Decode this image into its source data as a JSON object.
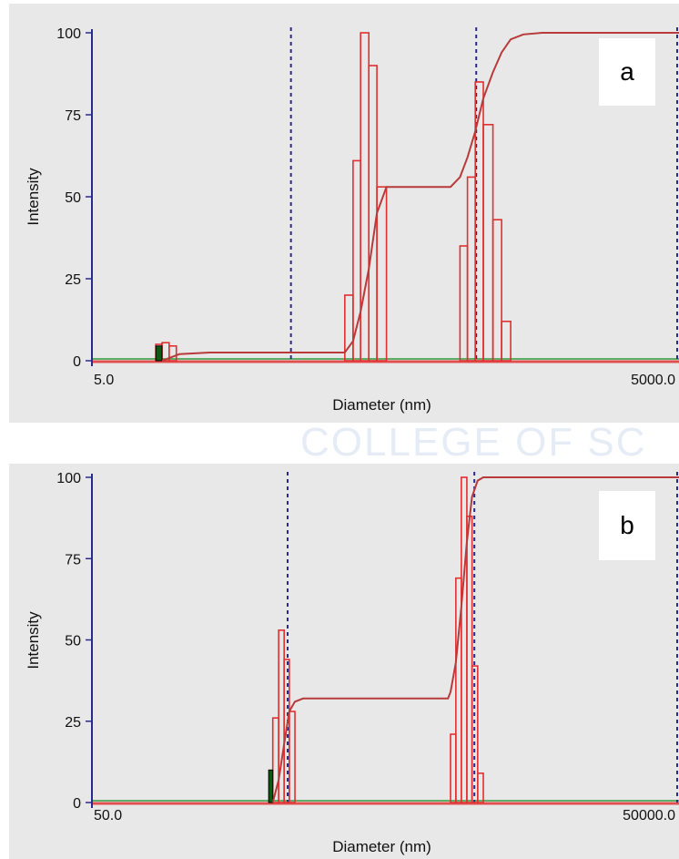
{
  "watermark": {
    "text": "COLLEGE OF SCIENCE"
  },
  "colors": {
    "bars": "#e03030",
    "cumulative": "#b83a3a",
    "cursor": "#2a2a8c",
    "baseline_green": "#2f9a3a",
    "baseline_red": "#e05050",
    "marker": "#0e5a14",
    "axis": "#2a2a8c"
  },
  "chart_data": [
    {
      "type": "bar",
      "panel_label": "a",
      "xlabel": "Diameter (nm)",
      "ylabel": "Intensity",
      "x_scale": "log",
      "xlim": [
        5.0,
        5000.0
      ],
      "ylim": [
        0,
        100
      ],
      "x_tick_labels": [
        "5.0",
        "5000.0"
      ],
      "y_ticks": [
        0,
        25,
        50,
        75,
        100
      ],
      "grid": false,
      "bars": [
        {
          "x0": 10.6,
          "x1": 11.4,
          "value": 5
        },
        {
          "x0": 11.4,
          "x1": 12.4,
          "value": 5.5
        },
        {
          "x0": 12.4,
          "x1": 13.5,
          "value": 4.5
        },
        {
          "x0": 98,
          "x1": 108,
          "value": 20
        },
        {
          "x0": 108,
          "x1": 118,
          "value": 61
        },
        {
          "x0": 118,
          "x1": 130,
          "value": 100
        },
        {
          "x0": 130,
          "x1": 143,
          "value": 90
        },
        {
          "x0": 143,
          "x1": 160,
          "value": 53
        },
        {
          "x0": 380,
          "x1": 415,
          "value": 35
        },
        {
          "x0": 415,
          "x1": 455,
          "value": 56
        },
        {
          "x0": 455,
          "x1": 500,
          "value": 85
        },
        {
          "x0": 500,
          "x1": 560,
          "value": 72
        },
        {
          "x0": 560,
          "x1": 620,
          "value": 43
        },
        {
          "x0": 620,
          "x1": 690,
          "value": 12
        }
      ],
      "cumulative": {
        "x": [
          11.4,
          14,
          20,
          40,
          80,
          98,
          108,
          118,
          130,
          143,
          160,
          250,
          340,
          380,
          415,
          455,
          500,
          560,
          620,
          690,
          800,
          1000,
          1500,
          5000
        ],
        "y": [
          0,
          2,
          2.5,
          2.5,
          2.5,
          2.5,
          6,
          15,
          28,
          45,
          53,
          53,
          53,
          56,
          62,
          70,
          80,
          88,
          94,
          98,
          99.5,
          100,
          100,
          100
        ]
      },
      "cursors_x": [
        52,
        460,
        5000
      ],
      "marker": {
        "x0": 10.6,
        "x1": 11.4,
        "value": 4.5
      }
    },
    {
      "type": "bar",
      "panel_label": "b",
      "xlabel": "Diameter (nm)",
      "ylabel": "Intensity",
      "x_scale": "log",
      "xlim": [
        50.0,
        50000.0
      ],
      "ylim": [
        0,
        100
      ],
      "x_tick_labels": [
        "50.0",
        "50000.0"
      ],
      "y_ticks": [
        0,
        25,
        50,
        75,
        100
      ],
      "grid": false,
      "bars": [
        {
          "x0": 420,
          "x1": 450,
          "value": 26
        },
        {
          "x0": 450,
          "x1": 480,
          "value": 53
        },
        {
          "x0": 480,
          "x1": 510,
          "value": 44
        },
        {
          "x0": 510,
          "x1": 545,
          "value": 28
        },
        {
          "x0": 3400,
          "x1": 3620,
          "value": 21
        },
        {
          "x0": 3620,
          "x1": 3860,
          "value": 69
        },
        {
          "x0": 3860,
          "x1": 4120,
          "value": 100
        },
        {
          "x0": 4120,
          "x1": 4380,
          "value": 88
        },
        {
          "x0": 4380,
          "x1": 4680,
          "value": 42
        },
        {
          "x0": 4680,
          "x1": 5000,
          "value": 9
        }
      ],
      "cumulative": {
        "x": [
          420,
          450,
          480,
          510,
          545,
          600,
          1500,
          3300,
          3400,
          3620,
          3860,
          4120,
          4380,
          4680,
          5000,
          5600,
          50000
        ],
        "y": [
          0,
          7,
          18,
          28,
          31,
          32,
          32,
          32,
          34,
          43,
          60,
          80,
          94,
          99,
          100,
          100,
          100
        ]
      },
      "cursors_x": [
        500,
        4500,
        50000
      ],
      "marker": {
        "x0": 400,
        "x1": 420,
        "value": 10
      }
    }
  ]
}
